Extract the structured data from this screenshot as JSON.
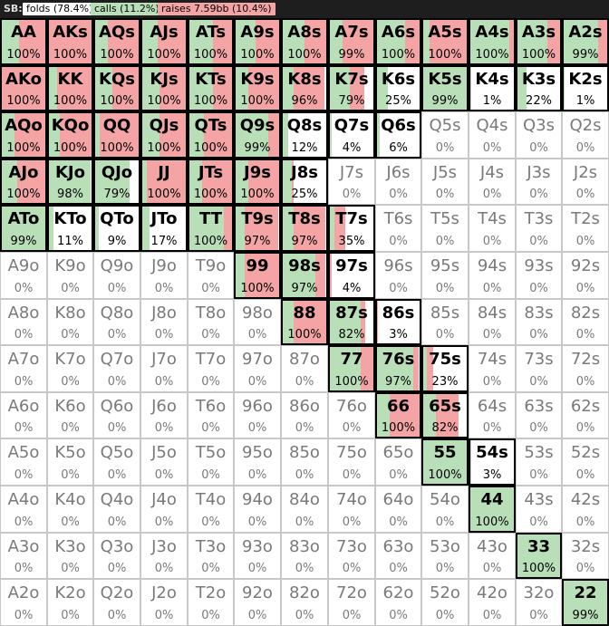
{
  "header": {
    "position_label": "SB:",
    "legend": [
      {
        "key": "fold",
        "label": "folds (78.4%)",
        "color": "#ffffff"
      },
      {
        "key": "call",
        "label": "calls (11.2%)",
        "color": "#b9dfb9"
      },
      {
        "key": "raise",
        "label": "raises 7.59bb (10.4%)",
        "color": "#f4a4a4"
      }
    ]
  },
  "colors": {
    "call": "#b9dfb9",
    "raise": "#f4a4a4",
    "fold": "#ffffff"
  },
  "grid": {
    "rows": [
      [
        {
          "hand": "AA",
          "pct": "100%",
          "call": 0.4,
          "raise": 0.6
        },
        {
          "hand": "AKs",
          "pct": "100%",
          "call": 0.0,
          "raise": 1.0
        },
        {
          "hand": "AQs",
          "pct": "100%",
          "call": 0.3,
          "raise": 0.7
        },
        {
          "hand": "AJs",
          "pct": "100%",
          "call": 0.35,
          "raise": 0.65
        },
        {
          "hand": "ATs",
          "pct": "100%",
          "call": 0.55,
          "raise": 0.45
        },
        {
          "hand": "A9s",
          "pct": "100%",
          "call": 0.45,
          "raise": 0.55
        },
        {
          "hand": "A8s",
          "pct": "100%",
          "call": 0.5,
          "raise": 0.5
        },
        {
          "hand": "A7s",
          "pct": "99%",
          "call": 0.3,
          "raise": 0.69
        },
        {
          "hand": "A6s",
          "pct": "100%",
          "call": 0.65,
          "raise": 0.35
        },
        {
          "hand": "A5s",
          "pct": "100%",
          "call": 0.15,
          "raise": 0.85
        },
        {
          "hand": "A4s",
          "pct": "100%",
          "call": 0.9,
          "raise": 0.1
        },
        {
          "hand": "A3s",
          "pct": "100%",
          "call": 0.7,
          "raise": 0.3
        },
        {
          "hand": "A2s",
          "pct": "99%",
          "call": 0.8,
          "raise": 0.19
        }
      ],
      [
        {
          "hand": "AKo",
          "pct": "100%",
          "call": 0.0,
          "raise": 1.0
        },
        {
          "hand": "KK",
          "pct": "100%",
          "call": 0.2,
          "raise": 0.8
        },
        {
          "hand": "KQs",
          "pct": "100%",
          "call": 0.4,
          "raise": 0.6
        },
        {
          "hand": "KJs",
          "pct": "100%",
          "call": 0.4,
          "raise": 0.6
        },
        {
          "hand": "KTs",
          "pct": "100%",
          "call": 0.55,
          "raise": 0.45
        },
        {
          "hand": "K9s",
          "pct": "100%",
          "call": 0.3,
          "raise": 0.7
        },
        {
          "hand": "K8s",
          "pct": "96%",
          "call": 0.25,
          "raise": 0.71
        },
        {
          "hand": "K7s",
          "pct": "79%",
          "call": 0.45,
          "raise": 0.34
        },
        {
          "hand": "K6s",
          "pct": "25%",
          "call": 0.25,
          "raise": 0.0
        },
        {
          "hand": "K5s",
          "pct": "99%",
          "call": 0.99,
          "raise": 0.0
        },
        {
          "hand": "K4s",
          "pct": "1%",
          "call": 0.01,
          "raise": 0.0
        },
        {
          "hand": "K3s",
          "pct": "22%",
          "call": 0.22,
          "raise": 0.0
        },
        {
          "hand": "K2s",
          "pct": "1%",
          "call": 0.01,
          "raise": 0.0
        }
      ],
      [
        {
          "hand": "AQo",
          "pct": "100%",
          "call": 0.3,
          "raise": 0.7
        },
        {
          "hand": "KQo",
          "pct": "100%",
          "call": 0.25,
          "raise": 0.75
        },
        {
          "hand": "QQ",
          "pct": "100%",
          "call": 0.1,
          "raise": 0.9
        },
        {
          "hand": "QJs",
          "pct": "100%",
          "call": 0.4,
          "raise": 0.6
        },
        {
          "hand": "QTs",
          "pct": "100%",
          "call": 0.35,
          "raise": 0.65
        },
        {
          "hand": "Q9s",
          "pct": "99%",
          "call": 0.75,
          "raise": 0.24
        },
        {
          "hand": "Q8s",
          "pct": "12%",
          "call": 0.12,
          "raise": 0.0
        },
        {
          "hand": "Q7s",
          "pct": "4%",
          "call": 0.04,
          "raise": 0.0
        },
        {
          "hand": "Q6s",
          "pct": "6%",
          "call": 0.06,
          "raise": 0.0
        },
        {
          "hand": "Q5s",
          "pct": "0%",
          "call": 0,
          "raise": 0
        },
        {
          "hand": "Q4s",
          "pct": "0%",
          "call": 0,
          "raise": 0
        },
        {
          "hand": "Q3s",
          "pct": "0%",
          "call": 0,
          "raise": 0
        },
        {
          "hand": "Q2s",
          "pct": "0%",
          "call": 0,
          "raise": 0
        }
      ],
      [
        {
          "hand": "AJo",
          "pct": "100%",
          "call": 0.35,
          "raise": 0.65
        },
        {
          "hand": "KJo",
          "pct": "98%",
          "call": 0.98,
          "raise": 0.0
        },
        {
          "hand": "QJo",
          "pct": "79%",
          "call": 0.79,
          "raise": 0.0
        },
        {
          "hand": "JJ",
          "pct": "100%",
          "call": 0.1,
          "raise": 0.9
        },
        {
          "hand": "JTs",
          "pct": "100%",
          "call": 0.3,
          "raise": 0.7
        },
        {
          "hand": "J9s",
          "pct": "100%",
          "call": 0.3,
          "raise": 0.7
        },
        {
          "hand": "J8s",
          "pct": "25%",
          "call": 0.2,
          "raise": 0.05
        },
        {
          "hand": "J7s",
          "pct": "0%",
          "call": 0,
          "raise": 0
        },
        {
          "hand": "J6s",
          "pct": "0%",
          "call": 0,
          "raise": 0
        },
        {
          "hand": "J5s",
          "pct": "0%",
          "call": 0,
          "raise": 0
        },
        {
          "hand": "J4s",
          "pct": "0%",
          "call": 0,
          "raise": 0
        },
        {
          "hand": "J3s",
          "pct": "0%",
          "call": 0,
          "raise": 0
        },
        {
          "hand": "J2s",
          "pct": "0%",
          "call": 0,
          "raise": 0
        }
      ],
      [
        {
          "hand": "ATo",
          "pct": "99%",
          "call": 0.99,
          "raise": 0.0
        },
        {
          "hand": "KTo",
          "pct": "11%",
          "call": 0.11,
          "raise": 0.0
        },
        {
          "hand": "QTo",
          "pct": "9%",
          "call": 0.09,
          "raise": 0.0
        },
        {
          "hand": "JTo",
          "pct": "17%",
          "call": 0.17,
          "raise": 0.0
        },
        {
          "hand": "TT",
          "pct": "100%",
          "call": 0.8,
          "raise": 0.2
        },
        {
          "hand": "T9s",
          "pct": "97%",
          "call": 0.2,
          "raise": 0.77
        },
        {
          "hand": "T8s",
          "pct": "97%",
          "call": 0.25,
          "raise": 0.72
        },
        {
          "hand": "T7s",
          "pct": "35%",
          "call": 0.1,
          "raise": 0.25
        },
        {
          "hand": "T6s",
          "pct": "0%",
          "call": 0,
          "raise": 0
        },
        {
          "hand": "T5s",
          "pct": "0%",
          "call": 0,
          "raise": 0
        },
        {
          "hand": "T4s",
          "pct": "0%",
          "call": 0,
          "raise": 0
        },
        {
          "hand": "T3s",
          "pct": "0%",
          "call": 0,
          "raise": 0
        },
        {
          "hand": "T2s",
          "pct": "0%",
          "call": 0,
          "raise": 0
        }
      ],
      [
        {
          "hand": "A9o",
          "pct": "0%",
          "call": 0,
          "raise": 0
        },
        {
          "hand": "K9o",
          "pct": "0%",
          "call": 0,
          "raise": 0
        },
        {
          "hand": "Q9o",
          "pct": "0%",
          "call": 0,
          "raise": 0
        },
        {
          "hand": "J9o",
          "pct": "0%",
          "call": 0,
          "raise": 0
        },
        {
          "hand": "T9o",
          "pct": "0%",
          "call": 0,
          "raise": 0
        },
        {
          "hand": "99",
          "pct": "100%",
          "call": 0.2,
          "raise": 0.8
        },
        {
          "hand": "98s",
          "pct": "97%",
          "call": 0.75,
          "raise": 0.22
        },
        {
          "hand": "97s",
          "pct": "4%",
          "call": 0.0,
          "raise": 0.04
        },
        {
          "hand": "96s",
          "pct": "0%",
          "call": 0,
          "raise": 0
        },
        {
          "hand": "95s",
          "pct": "0%",
          "call": 0,
          "raise": 0
        },
        {
          "hand": "94s",
          "pct": "0%",
          "call": 0,
          "raise": 0
        },
        {
          "hand": "93s",
          "pct": "0%",
          "call": 0,
          "raise": 0
        },
        {
          "hand": "92s",
          "pct": "0%",
          "call": 0,
          "raise": 0
        }
      ],
      [
        {
          "hand": "A8o",
          "pct": "0%",
          "call": 0,
          "raise": 0
        },
        {
          "hand": "K8o",
          "pct": "0%",
          "call": 0,
          "raise": 0
        },
        {
          "hand": "Q8o",
          "pct": "0%",
          "call": 0,
          "raise": 0
        },
        {
          "hand": "J8o",
          "pct": "0%",
          "call": 0,
          "raise": 0
        },
        {
          "hand": "T8o",
          "pct": "0%",
          "call": 0,
          "raise": 0
        },
        {
          "hand": "98o",
          "pct": "0%",
          "call": 0,
          "raise": 0
        },
        {
          "hand": "88",
          "pct": "100%",
          "call": 0.25,
          "raise": 0.75
        },
        {
          "hand": "87s",
          "pct": "82%",
          "call": 0.7,
          "raise": 0.12
        },
        {
          "hand": "86s",
          "pct": "3%",
          "call": 0.0,
          "raise": 0.03
        },
        {
          "hand": "85s",
          "pct": "0%",
          "call": 0,
          "raise": 0
        },
        {
          "hand": "84s",
          "pct": "0%",
          "call": 0,
          "raise": 0
        },
        {
          "hand": "83s",
          "pct": "0%",
          "call": 0,
          "raise": 0
        },
        {
          "hand": "82s",
          "pct": "0%",
          "call": 0,
          "raise": 0
        }
      ],
      [
        {
          "hand": "A7o",
          "pct": "0%",
          "call": 0,
          "raise": 0
        },
        {
          "hand": "K7o",
          "pct": "0%",
          "call": 0,
          "raise": 0
        },
        {
          "hand": "Q7o",
          "pct": "0%",
          "call": 0,
          "raise": 0
        },
        {
          "hand": "J7o",
          "pct": "0%",
          "call": 0,
          "raise": 0
        },
        {
          "hand": "T7o",
          "pct": "0%",
          "call": 0,
          "raise": 0
        },
        {
          "hand": "97o",
          "pct": "0%",
          "call": 0,
          "raise": 0
        },
        {
          "hand": "87o",
          "pct": "0%",
          "call": 0,
          "raise": 0
        },
        {
          "hand": "77",
          "pct": "100%",
          "call": 0.7,
          "raise": 0.3
        },
        {
          "hand": "76s",
          "pct": "97%",
          "call": 0.85,
          "raise": 0.12
        },
        {
          "hand": "75s",
          "pct": "23%",
          "call": 0.08,
          "raise": 0.15
        },
        {
          "hand": "74s",
          "pct": "0%",
          "call": 0,
          "raise": 0
        },
        {
          "hand": "73s",
          "pct": "0%",
          "call": 0,
          "raise": 0
        },
        {
          "hand": "72s",
          "pct": "0%",
          "call": 0,
          "raise": 0
        }
      ],
      [
        {
          "hand": "A6o",
          "pct": "0%",
          "call": 0,
          "raise": 0
        },
        {
          "hand": "K6o",
          "pct": "0%",
          "call": 0,
          "raise": 0
        },
        {
          "hand": "Q6o",
          "pct": "0%",
          "call": 0,
          "raise": 0
        },
        {
          "hand": "J6o",
          "pct": "0%",
          "call": 0,
          "raise": 0
        },
        {
          "hand": "T6o",
          "pct": "0%",
          "call": 0,
          "raise": 0
        },
        {
          "hand": "96o",
          "pct": "0%",
          "call": 0,
          "raise": 0
        },
        {
          "hand": "86o",
          "pct": "0%",
          "call": 0,
          "raise": 0
        },
        {
          "hand": "76o",
          "pct": "0%",
          "call": 0,
          "raise": 0
        },
        {
          "hand": "66",
          "pct": "100%",
          "call": 0.3,
          "raise": 0.7
        },
        {
          "hand": "65s",
          "pct": "82%",
          "call": 0.3,
          "raise": 0.52
        },
        {
          "hand": "64s",
          "pct": "0%",
          "call": 0,
          "raise": 0
        },
        {
          "hand": "63s",
          "pct": "0%",
          "call": 0,
          "raise": 0
        },
        {
          "hand": "62s",
          "pct": "0%",
          "call": 0,
          "raise": 0
        }
      ],
      [
        {
          "hand": "A5o",
          "pct": "0%",
          "call": 0,
          "raise": 0
        },
        {
          "hand": "K5o",
          "pct": "0%",
          "call": 0,
          "raise": 0
        },
        {
          "hand": "Q5o",
          "pct": "0%",
          "call": 0,
          "raise": 0
        },
        {
          "hand": "J5o",
          "pct": "0%",
          "call": 0,
          "raise": 0
        },
        {
          "hand": "T5o",
          "pct": "0%",
          "call": 0,
          "raise": 0
        },
        {
          "hand": "95o",
          "pct": "0%",
          "call": 0,
          "raise": 0
        },
        {
          "hand": "85o",
          "pct": "0%",
          "call": 0,
          "raise": 0
        },
        {
          "hand": "75o",
          "pct": "0%",
          "call": 0,
          "raise": 0
        },
        {
          "hand": "65o",
          "pct": "0%",
          "call": 0,
          "raise": 0
        },
        {
          "hand": "55",
          "pct": "100%",
          "call": 1.0,
          "raise": 0.0
        },
        {
          "hand": "54s",
          "pct": "3%",
          "call": 0.03,
          "raise": 0.0
        },
        {
          "hand": "53s",
          "pct": "0%",
          "call": 0,
          "raise": 0
        },
        {
          "hand": "52s",
          "pct": "0%",
          "call": 0,
          "raise": 0
        }
      ],
      [
        {
          "hand": "A4o",
          "pct": "0%",
          "call": 0,
          "raise": 0
        },
        {
          "hand": "K4o",
          "pct": "0%",
          "call": 0,
          "raise": 0
        },
        {
          "hand": "Q4o",
          "pct": "0%",
          "call": 0,
          "raise": 0
        },
        {
          "hand": "J4o",
          "pct": "0%",
          "call": 0,
          "raise": 0
        },
        {
          "hand": "T4o",
          "pct": "0%",
          "call": 0,
          "raise": 0
        },
        {
          "hand": "94o",
          "pct": "0%",
          "call": 0,
          "raise": 0
        },
        {
          "hand": "84o",
          "pct": "0%",
          "call": 0,
          "raise": 0
        },
        {
          "hand": "74o",
          "pct": "0%",
          "call": 0,
          "raise": 0
        },
        {
          "hand": "64o",
          "pct": "0%",
          "call": 0,
          "raise": 0
        },
        {
          "hand": "54o",
          "pct": "0%",
          "call": 0,
          "raise": 0
        },
        {
          "hand": "44",
          "pct": "100%",
          "call": 1.0,
          "raise": 0.0
        },
        {
          "hand": "43s",
          "pct": "0%",
          "call": 0,
          "raise": 0
        },
        {
          "hand": "42s",
          "pct": "0%",
          "call": 0,
          "raise": 0
        }
      ],
      [
        {
          "hand": "A3o",
          "pct": "0%",
          "call": 0,
          "raise": 0
        },
        {
          "hand": "K3o",
          "pct": "0%",
          "call": 0,
          "raise": 0
        },
        {
          "hand": "Q3o",
          "pct": "0%",
          "call": 0,
          "raise": 0
        },
        {
          "hand": "J3o",
          "pct": "0%",
          "call": 0,
          "raise": 0
        },
        {
          "hand": "T3o",
          "pct": "0%",
          "call": 0,
          "raise": 0
        },
        {
          "hand": "93o",
          "pct": "0%",
          "call": 0,
          "raise": 0
        },
        {
          "hand": "83o",
          "pct": "0%",
          "call": 0,
          "raise": 0
        },
        {
          "hand": "73o",
          "pct": "0%",
          "call": 0,
          "raise": 0
        },
        {
          "hand": "63o",
          "pct": "0%",
          "call": 0,
          "raise": 0
        },
        {
          "hand": "53o",
          "pct": "0%",
          "call": 0,
          "raise": 0
        },
        {
          "hand": "43o",
          "pct": "0%",
          "call": 0,
          "raise": 0
        },
        {
          "hand": "33",
          "pct": "100%",
          "call": 1.0,
          "raise": 0.0
        },
        {
          "hand": "32s",
          "pct": "0%",
          "call": 0,
          "raise": 0
        }
      ],
      [
        {
          "hand": "A2o",
          "pct": "0%",
          "call": 0,
          "raise": 0
        },
        {
          "hand": "K2o",
          "pct": "0%",
          "call": 0,
          "raise": 0
        },
        {
          "hand": "Q2o",
          "pct": "0%",
          "call": 0,
          "raise": 0
        },
        {
          "hand": "J2o",
          "pct": "0%",
          "call": 0,
          "raise": 0
        },
        {
          "hand": "T2o",
          "pct": "0%",
          "call": 0,
          "raise": 0
        },
        {
          "hand": "92o",
          "pct": "0%",
          "call": 0,
          "raise": 0
        },
        {
          "hand": "82o",
          "pct": "0%",
          "call": 0,
          "raise": 0
        },
        {
          "hand": "72o",
          "pct": "0%",
          "call": 0,
          "raise": 0
        },
        {
          "hand": "62o",
          "pct": "0%",
          "call": 0,
          "raise": 0
        },
        {
          "hand": "52o",
          "pct": "0%",
          "call": 0,
          "raise": 0
        },
        {
          "hand": "42o",
          "pct": "0%",
          "call": 0,
          "raise": 0
        },
        {
          "hand": "32o",
          "pct": "0%",
          "call": 0,
          "raise": 0
        },
        {
          "hand": "22",
          "pct": "99%",
          "call": 0.99,
          "raise": 0.0
        }
      ]
    ]
  }
}
